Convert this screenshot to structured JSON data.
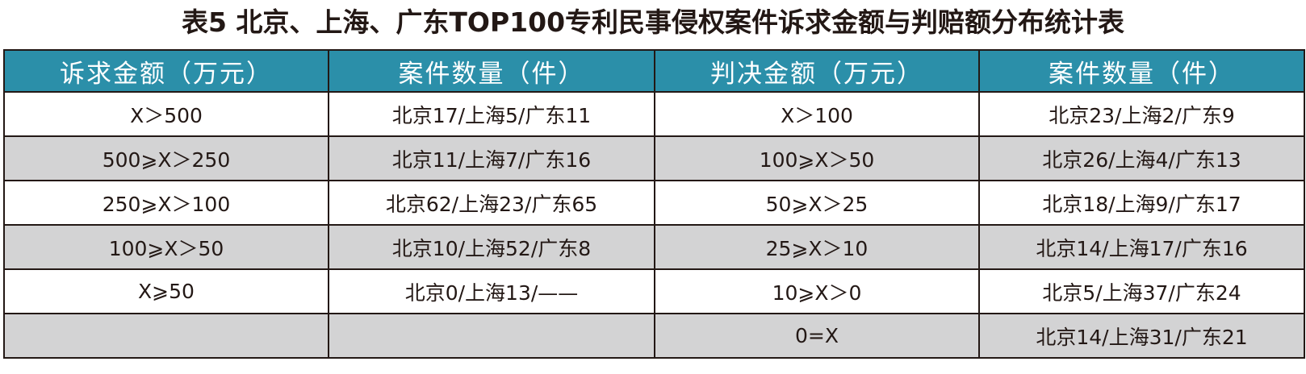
{
  "title": "表5 北京、上海、广东TOP100专利民事侵权案件诉求金额与判赔额分布统计表",
  "colors": {
    "header_bg": "#2b8fa9",
    "header_text": "#ffffff",
    "row_alt_bg": "#d3d3d4",
    "border": "#231815"
  },
  "table": {
    "headers": [
      "诉求金额（万元）",
      "案件数量（件）",
      "判决金额（万元）",
      "案件数量（件）"
    ],
    "rows": [
      [
        "X＞500",
        "北京17/上海5/广东11",
        "X＞100",
        "北京23/上海2/广东9"
      ],
      [
        "500⩾X＞250",
        "北京11/上海7/广东16",
        "100⩾X＞50",
        "北京26/上海4/广东13"
      ],
      [
        "250⩾X＞100",
        "北京62/上海23/广东65",
        "50⩾X＞25",
        "北京18/上海9/广东17"
      ],
      [
        "100⩾X＞50",
        "北京10/上海52/广东8",
        "25⩾X＞10",
        "北京14/上海17/广东16"
      ],
      [
        "X⩾50",
        "北京0/上海13/——",
        "10⩾X＞0",
        "北京5/上海37/广东24"
      ],
      [
        "",
        "",
        "0=X",
        "北京14/上海31/广东21"
      ]
    ]
  }
}
